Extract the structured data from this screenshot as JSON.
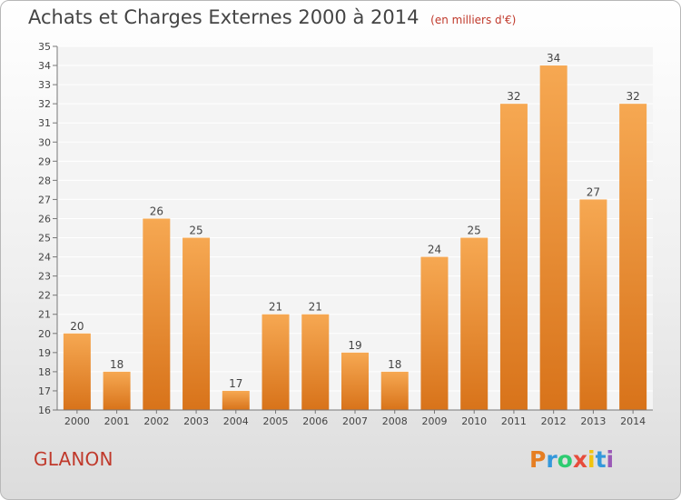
{
  "title": "Achats et Charges Externes 2000 à 2014",
  "subtitle": "(en milliers d'€)",
  "commune": "GLANON",
  "logo": {
    "letters": [
      "P",
      "r",
      "o",
      "x",
      "i",
      "t",
      "i"
    ],
    "colors": [
      "#e67e22",
      "#3498db",
      "#2ecc71",
      "#e74c3c",
      "#f1c40f",
      "#3498db",
      "#9b59b6"
    ]
  },
  "colors": {
    "bar_light": "#f6a852",
    "bar_dark": "#d8731a",
    "accent": "#c0392b"
  },
  "chart_data": {
    "type": "bar",
    "categories": [
      "2000",
      "2001",
      "2002",
      "2003",
      "2004",
      "2005",
      "2006",
      "2007",
      "2008",
      "2009",
      "2010",
      "2011",
      "2012",
      "2013",
      "2014"
    ],
    "values": [
      20,
      18,
      26,
      25,
      17,
      21,
      21,
      19,
      18,
      24,
      25,
      32,
      34,
      27,
      32
    ],
    "ylim": [
      16,
      35
    ],
    "yticks": [
      16,
      17,
      18,
      19,
      20,
      21,
      22,
      23,
      24,
      25,
      26,
      27,
      28,
      29,
      30,
      31,
      32,
      33,
      34,
      35
    ],
    "grid": true
  }
}
